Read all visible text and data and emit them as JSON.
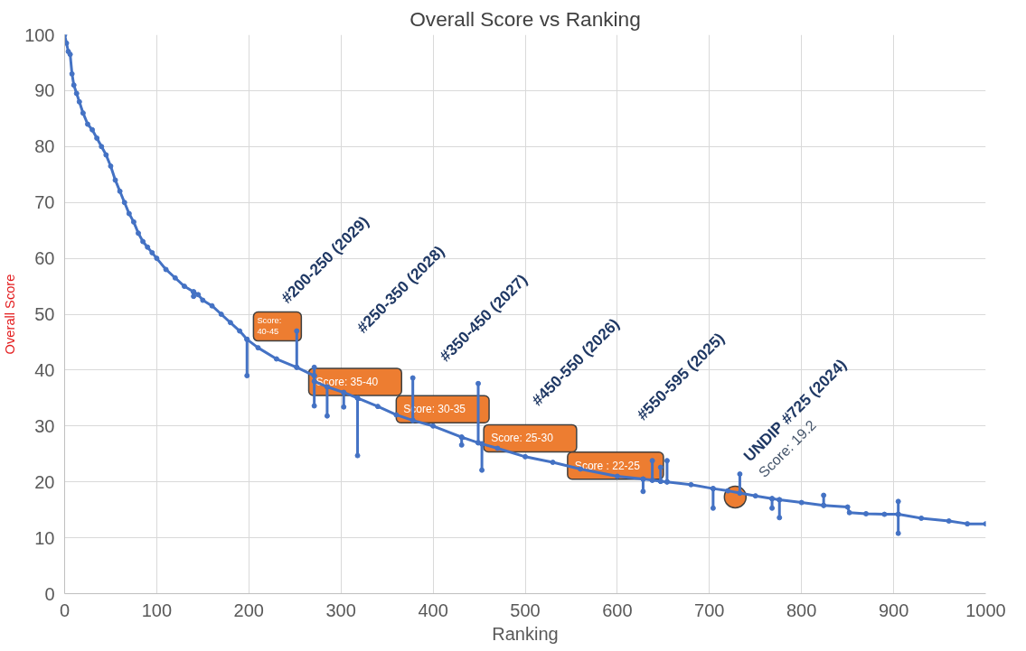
{
  "chart_data": {
    "type": "line",
    "title": "Overall Score vs Ranking",
    "xlabel": "Ranking",
    "ylabel": "Overall Score",
    "xlim": [
      0,
      1000
    ],
    "ylim": [
      0,
      100
    ],
    "xticks": [
      0,
      100,
      200,
      300,
      400,
      500,
      600,
      700,
      800,
      900,
      1000
    ],
    "yticks": [
      0,
      10,
      20,
      30,
      40,
      50,
      60,
      70,
      80,
      90,
      100
    ],
    "grid": true,
    "marker": "circle",
    "line_style": "solid",
    "series": [
      {
        "color": "#4472c4",
        "x": [
          0,
          2,
          4,
          6,
          8,
          10,
          13,
          16,
          20,
          25,
          30,
          35,
          40,
          45,
          50,
          55,
          60,
          65,
          70,
          75,
          80,
          85,
          90,
          95,
          100,
          110,
          120,
          130,
          140,
          140,
          140,
          145,
          150,
          160,
          170,
          180,
          190,
          198,
          198,
          198,
          210,
          230,
          252,
          252,
          252,
          271,
          271,
          271,
          271,
          271,
          285,
          285,
          285,
          303,
          303,
          303,
          318,
          318,
          318,
          340,
          360,
          378,
          378,
          378,
          400,
          431,
          431,
          431,
          449,
          449,
          449,
          453,
          453,
          453,
          470,
          500,
          530,
          560,
          600,
          628,
          628,
          628,
          638,
          638,
          638,
          647,
          647,
          647,
          654,
          654,
          654,
          680,
          704,
          704,
          704,
          720,
          733,
          733,
          733,
          750,
          768,
          768,
          768,
          776,
          776,
          776,
          800,
          824,
          824,
          824,
          850,
          852,
          870,
          890,
          905,
          905,
          905,
          905,
          930,
          960,
          980,
          1000
        ],
        "values": [
          100,
          98.5,
          97,
          96.5,
          93,
          91,
          89.5,
          88,
          86,
          84,
          83,
          81.5,
          80,
          78.5,
          76.5,
          74,
          72,
          70,
          68,
          66.5,
          64.5,
          63,
          62,
          61,
          60,
          58,
          56.5,
          55,
          54,
          53.2,
          54,
          53.5,
          52.5,
          51.5,
          50,
          48.5,
          47,
          45.5,
          39,
          45.5,
          44,
          42,
          40.5,
          47,
          40.5,
          39,
          40.5,
          33.6,
          39,
          38,
          37,
          31.8,
          37,
          36,
          33.4,
          36,
          35,
          24.7,
          35,
          33.5,
          32,
          31,
          38.6,
          31,
          30,
          28,
          26.6,
          28,
          27,
          37.6,
          27,
          26.8,
          22.1,
          26.8,
          26,
          24.5,
          23.5,
          22.3,
          21,
          20.5,
          18.3,
          20.5,
          20.3,
          23.8,
          20.3,
          20.1,
          22.6,
          20.1,
          20,
          23.8,
          20,
          19.5,
          18.8,
          15.3,
          18.8,
          18.4,
          18,
          21.4,
          18,
          17.5,
          17,
          15.3,
          17,
          16.8,
          13.6,
          16.8,
          16.3,
          15.8,
          17.6,
          15.8,
          15.5,
          14.5,
          14.3,
          14.2,
          14.2,
          16.5,
          10.8,
          14.2,
          13.5,
          13,
          12.5,
          12.5
        ]
      },
      {
        "type": "scatter",
        "color": "#ed7d31",
        "x": [
          728
        ],
        "values": [
          17.3
        ]
      }
    ],
    "annotations": [
      "#200-250 (2029)",
      "#250-350 (2028)",
      "#350-450 (2027)",
      "#450-550 (2026)",
      "#550-595 (2025)",
      "UNDIP #725 (2024)",
      "Score: 19.2",
      "Score:\n 40-45",
      "Score: 35-40",
      "Score: 30-35",
      "Score: 25-30",
      "Score : 22-25"
    ]
  }
}
